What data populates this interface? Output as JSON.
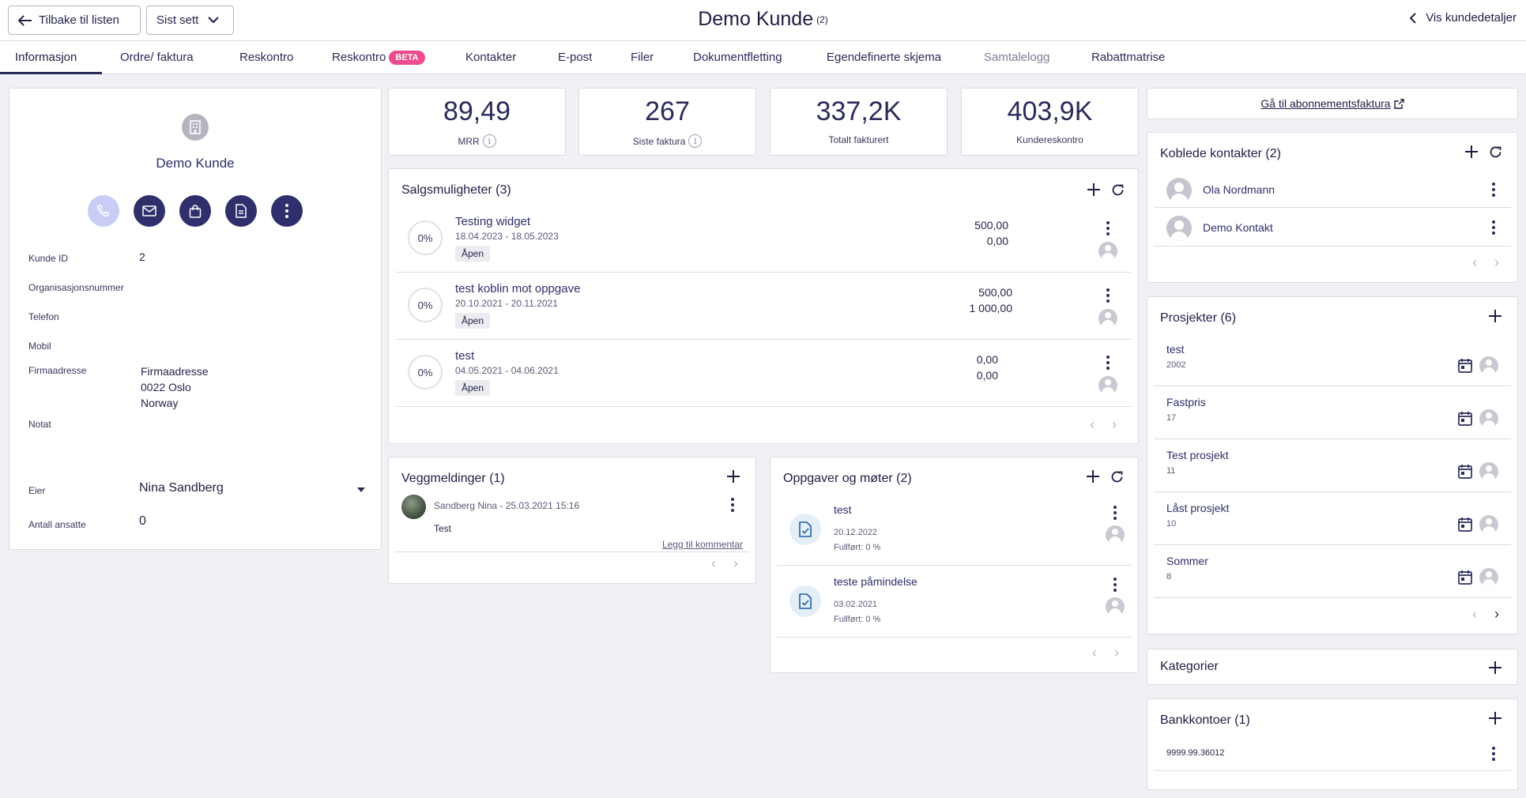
{
  "header": {
    "back_label": "Tilbake til listen",
    "recent_label": "Sist sett",
    "title": "Demo Kunde",
    "title_count": "(2)",
    "details_link": "Vis kundedetaljer"
  },
  "tabs": [
    {
      "label": "Informasjon"
    },
    {
      "label": "Ordre/ faktura"
    },
    {
      "label": "Reskontro"
    },
    {
      "label": "Reskontro",
      "badge": "BETA"
    },
    {
      "label": "Kontakter"
    },
    {
      "label": "E-post"
    },
    {
      "label": "Filer"
    },
    {
      "label": "Dokumentfletting"
    },
    {
      "label": "Egendefinerte skjema"
    },
    {
      "label": "Samtalelogg"
    },
    {
      "label": "Rabattmatrise"
    }
  ],
  "customer": {
    "name": "Demo Kunde",
    "fields": {
      "kunde_id_label": "Kunde ID",
      "kunde_id": "2",
      "org_label": "Organisasjonsnummer",
      "telefon_label": "Telefon",
      "mobil_label": "Mobil",
      "adresse_label": "Firmaadresse",
      "adresse_line1": "Firmaadresse",
      "adresse_line2": "0022 Oslo",
      "adresse_line3": "Norway",
      "notat_label": "Notat",
      "eier_label": "Eier",
      "eier": "Nina Sandberg",
      "ansatte_label": "Antall ansatte",
      "ansatte": "0"
    }
  },
  "stats": [
    {
      "value": "89,49",
      "label": "MRR",
      "info": true
    },
    {
      "value": "267",
      "label": "Siste faktura",
      "info": true
    },
    {
      "value": "337,2K",
      "label": "Totalt fakturert",
      "info": false
    },
    {
      "value": "403,9K",
      "label": "Kundereskontro",
      "info": false
    }
  ],
  "opportunities": {
    "title": "Salgsmuligheter (3)",
    "items": [
      {
        "pct": "0%",
        "name": "Testing widget",
        "dates": "18.04.2023 - 18.05.2023",
        "status": "Åpen",
        "amount1": "500,00",
        "amount2": "0,00"
      },
      {
        "pct": "0%",
        "name": "test koblin mot oppgave",
        "dates": "20.10.2021 - 20.11.2021",
        "status": "Åpen",
        "amount1": "500,00",
        "amount2": "1 000,00"
      },
      {
        "pct": "0%",
        "name": "test",
        "dates": "04.05.2021 - 04.06.2021",
        "status": "Åpen",
        "amount1": "0,00",
        "amount2": "0,00"
      }
    ]
  },
  "wall": {
    "title": "Veggmeldinger (1)",
    "author": "Sandberg Nina - 25.03.2021 15:16",
    "text": "Test",
    "comment_link": "Legg til kommentar"
  },
  "tasks": {
    "title": "Oppgaver og møter (2)",
    "items": [
      {
        "name": "test",
        "date": "20.12.2022",
        "progress": "Fullført: 0 %"
      },
      {
        "name": "teste påmindelse",
        "date": "03.02.2021",
        "progress": "Fullført: 0 %"
      }
    ]
  },
  "subscription_link": "Gå til abonnementsfaktura",
  "contacts": {
    "title": "Koblede kontakter (2)",
    "items": [
      {
        "name": "Ola Nordmann"
      },
      {
        "name": "Demo Kontakt"
      }
    ]
  },
  "projects": {
    "title": "Prosjekter (6)",
    "items": [
      {
        "name": "test",
        "number": "2002"
      },
      {
        "name": "Fastpris",
        "number": "17"
      },
      {
        "name": "Test prosjekt",
        "number": "11"
      },
      {
        "name": "Låst prosjekt",
        "number": "10"
      },
      {
        "name": "Sommer",
        "number": "8"
      }
    ]
  },
  "categories": {
    "title": "Kategorier"
  },
  "bank": {
    "title": "Bankkontoer (1)",
    "items": [
      {
        "number": "9999.99.36012"
      }
    ]
  },
  "colors": {
    "primary": "#2f2f6b",
    "beta_badge": "#ec4c8d",
    "background": "#f1f1f5"
  }
}
